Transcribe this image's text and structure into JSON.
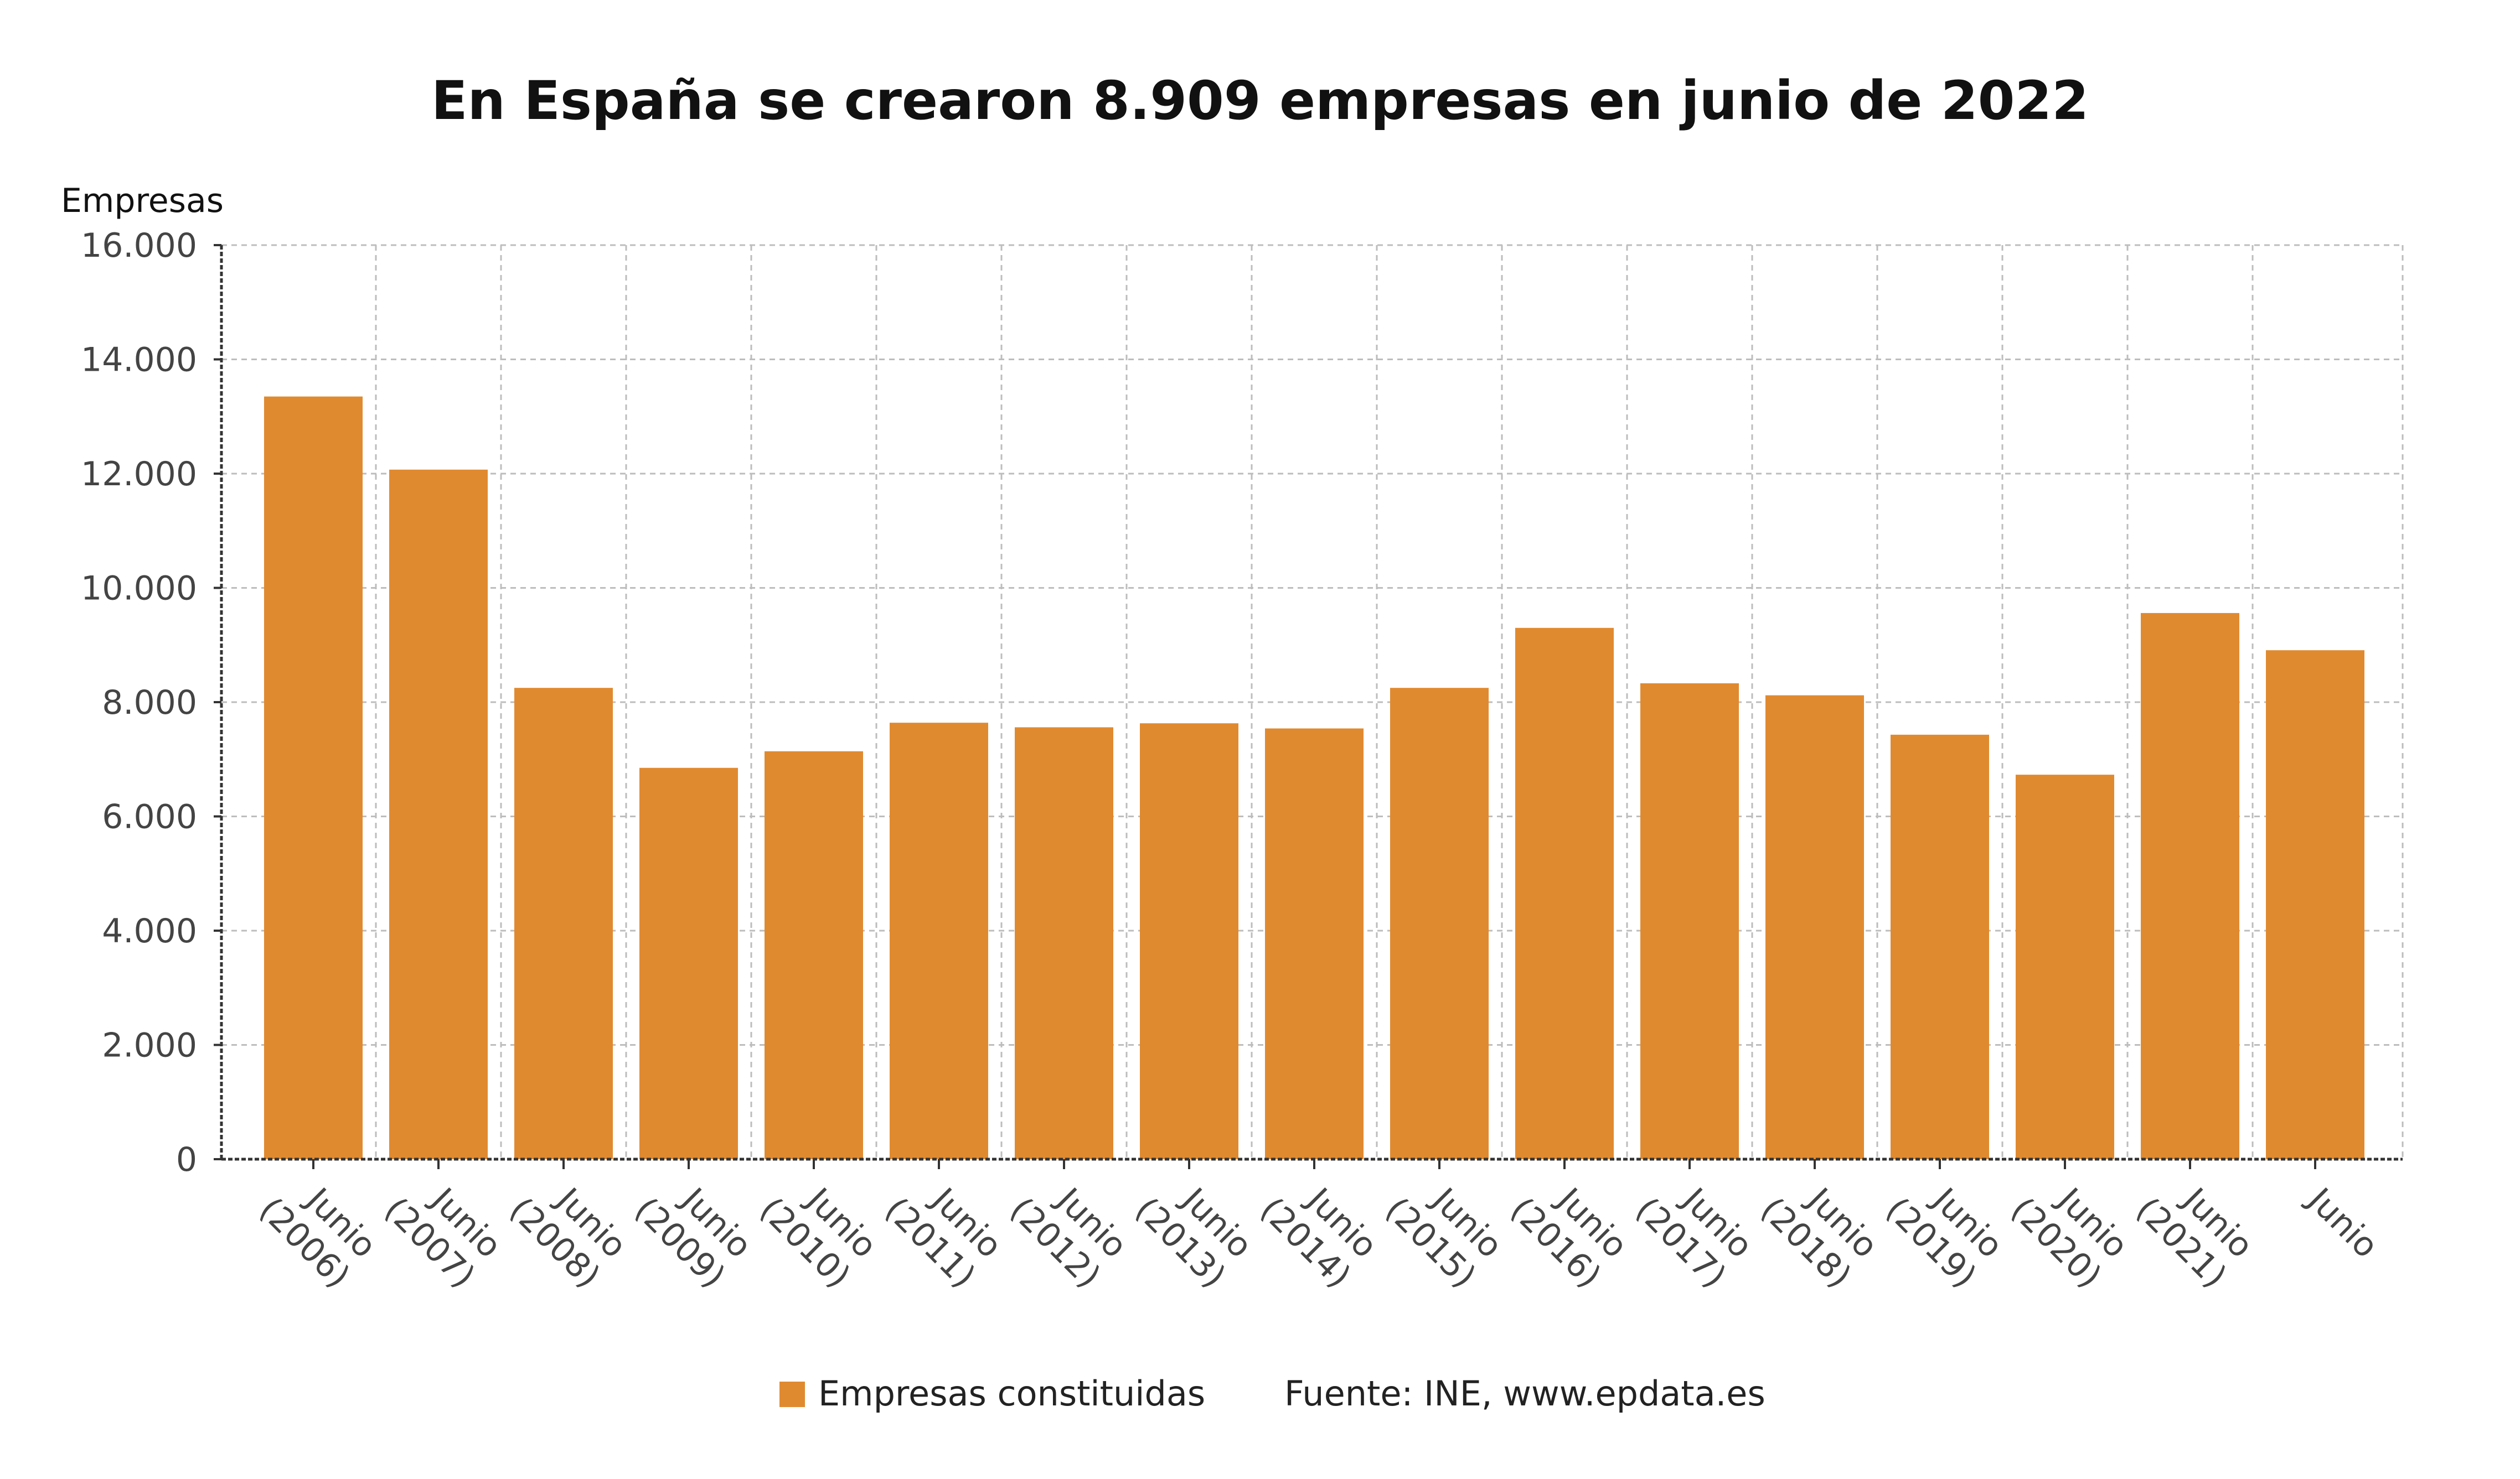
{
  "chart_data": {
    "type": "bar",
    "title": "En España se crearon 8.909 empresas en junio de 2022",
    "ylabel": "Empresas",
    "xlabel": "",
    "ylim": [
      0,
      16000
    ],
    "yticks": [
      0,
      2000,
      4000,
      6000,
      8000,
      10000,
      12000,
      14000,
      16000
    ],
    "ytick_labels": [
      "0",
      "2.000",
      "4.000",
      "6.000",
      "8.000",
      "10.000",
      "12.000",
      "14.000",
      "16.000"
    ],
    "categories": [
      [
        "Junio",
        "(2006)"
      ],
      [
        "Junio",
        "(2007)"
      ],
      [
        "Junio",
        "(2008)"
      ],
      [
        "Junio",
        "(2009)"
      ],
      [
        "Junio",
        "(2010)"
      ],
      [
        "Junio",
        "(2011)"
      ],
      [
        "Junio",
        "(2012)"
      ],
      [
        "Junio",
        "(2013)"
      ],
      [
        "Junio",
        "(2014)"
      ],
      [
        "Junio",
        "(2015)"
      ],
      [
        "Junio",
        "(2016)"
      ],
      [
        "Junio",
        "(2017)"
      ],
      [
        "Junio",
        "(2018)"
      ],
      [
        "Junio",
        "(2019)"
      ],
      [
        "Junio",
        "(2020)"
      ],
      [
        "Junio",
        "(2021)"
      ],
      [
        "Junio"
      ]
    ],
    "series": [
      {
        "name": "Empresas constituidas",
        "color": "#e08a30",
        "values": [
          13350,
          12070,
          8250,
          6850,
          7140,
          7640,
          7560,
          7630,
          7540,
          8250,
          9300,
          8330,
          8120,
          7430,
          6730,
          9560,
          8909
        ]
      }
    ],
    "grid": true,
    "legend_position": "bottom-center"
  },
  "source": "Fuente: INE, www.epdata.es"
}
